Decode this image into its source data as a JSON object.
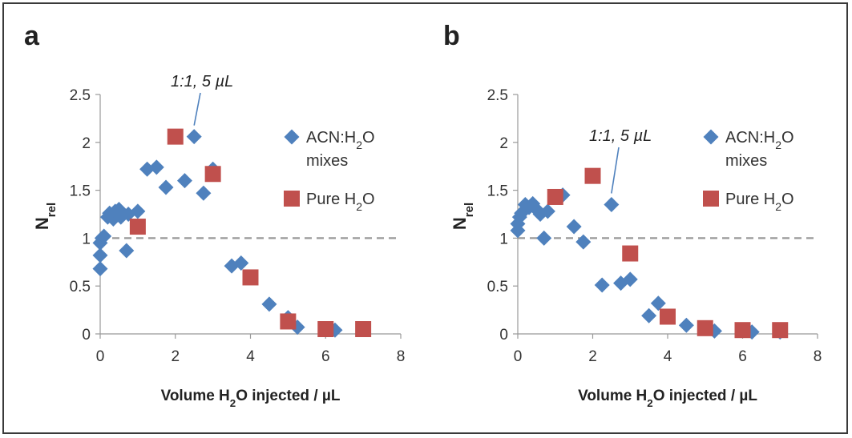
{
  "chart_data": [
    {
      "type": "scatter",
      "panel_label": "a",
      "xlabel": "Volume H₂O injected / µL",
      "ylabel": "N",
      "ylabel_sub": "rel",
      "xlim": [
        0,
        8
      ],
      "ylim": [
        0,
        2.5
      ],
      "xticks": [
        "0",
        "2",
        "4",
        "6",
        "8"
      ],
      "yticks": [
        "0",
        "0.5",
        "1",
        "1.5",
        "2",
        "2.5"
      ],
      "reference_line": {
        "y": 1,
        "style": "dashed"
      },
      "annotation": {
        "text": "1:1, 5 µL",
        "x": 2.5,
        "y": 2.06
      },
      "legend": [
        {
          "line1": "ACN:H₂O",
          "line2": "mixes"
        },
        {
          "line1": "Pure H₂O"
        }
      ],
      "series": [
        {
          "name": "ACN:H2O mixes",
          "marker": "diamond",
          "color": "#4f81bd",
          "points": [
            [
              0,
              0.68
            ],
            [
              0,
              0.82
            ],
            [
              0,
              0.95
            ],
            [
              0.05,
              1.0
            ],
            [
              0.1,
              1.02
            ],
            [
              0.2,
              1.22
            ],
            [
              0.25,
              1.26
            ],
            [
              0.35,
              1.2
            ],
            [
              0.4,
              1.28
            ],
            [
              0.5,
              1.3
            ],
            [
              0.55,
              1.22
            ],
            [
              0.6,
              1.25
            ],
            [
              0.7,
              0.87
            ],
            [
              0.75,
              1.25
            ],
            [
              1.0,
              1.28
            ],
            [
              1.25,
              1.72
            ],
            [
              1.5,
              1.74
            ],
            [
              1.75,
              1.53
            ],
            [
              2.25,
              1.6
            ],
            [
              2.5,
              2.06
            ],
            [
              2.75,
              1.47
            ],
            [
              3.0,
              1.72
            ],
            [
              3.5,
              0.71
            ],
            [
              3.75,
              0.74
            ],
            [
              4.5,
              0.31
            ],
            [
              5.0,
              0.17
            ],
            [
              5.25,
              0.07
            ],
            [
              6.0,
              0.05
            ],
            [
              6.25,
              0.04
            ]
          ]
        },
        {
          "name": "Pure H2O",
          "marker": "square",
          "color": "#c0504d",
          "points": [
            [
              1,
              1.12
            ],
            [
              2,
              2.06
            ],
            [
              3,
              1.67
            ],
            [
              4,
              0.59
            ],
            [
              5,
              0.13
            ],
            [
              6,
              0.05
            ],
            [
              7,
              0.05
            ]
          ]
        }
      ]
    },
    {
      "type": "scatter",
      "panel_label": "b",
      "xlabel": "Volume H₂O injected / µL",
      "ylabel": "N",
      "ylabel_sub": "rel",
      "xlim": [
        0,
        8
      ],
      "ylim": [
        0,
        2.5
      ],
      "xticks": [
        "0",
        "2",
        "4",
        "6",
        "8"
      ],
      "yticks": [
        "0",
        "0.5",
        "1",
        "1.5",
        "2",
        "2.5"
      ],
      "reference_line": {
        "y": 1,
        "style": "dashed"
      },
      "annotation": {
        "text": "1:1, 5 µL",
        "x": 2.5,
        "y": 1.35
      },
      "legend": [
        {
          "line1": "ACN:H₂O",
          "line2": "mixes"
        },
        {
          "line1": "Pure H₂O"
        }
      ],
      "series": [
        {
          "name": "ACN:H2O mixes",
          "marker": "diamond",
          "color": "#4f81bd",
          "points": [
            [
              0,
              1.08
            ],
            [
              0,
              1.15
            ],
            [
              0.05,
              1.22
            ],
            [
              0.1,
              1.26
            ],
            [
              0.2,
              1.35
            ],
            [
              0.3,
              1.32
            ],
            [
              0.4,
              1.36
            ],
            [
              0.5,
              1.3
            ],
            [
              0.6,
              1.25
            ],
            [
              0.7,
              1.0
            ],
            [
              0.8,
              1.28
            ],
            [
              1.2,
              1.45
            ],
            [
              1.5,
              1.12
            ],
            [
              1.75,
              0.96
            ],
            [
              2.25,
              0.51
            ],
            [
              2.5,
              1.35
            ],
            [
              2.75,
              0.53
            ],
            [
              3.0,
              0.57
            ],
            [
              3.5,
              0.19
            ],
            [
              3.75,
              0.32
            ],
            [
              4.5,
              0.09
            ],
            [
              5.25,
              0.03
            ],
            [
              6.0,
              0.04
            ],
            [
              6.25,
              0.02
            ],
            [
              7.0,
              0.02
            ]
          ]
        },
        {
          "name": "Pure H2O",
          "marker": "square",
          "color": "#c0504d",
          "points": [
            [
              1,
              1.43
            ],
            [
              2,
              1.65
            ],
            [
              3,
              0.84
            ],
            [
              4,
              0.18
            ],
            [
              5,
              0.06
            ],
            [
              6,
              0.04
            ],
            [
              7,
              0.04
            ]
          ]
        }
      ]
    }
  ]
}
